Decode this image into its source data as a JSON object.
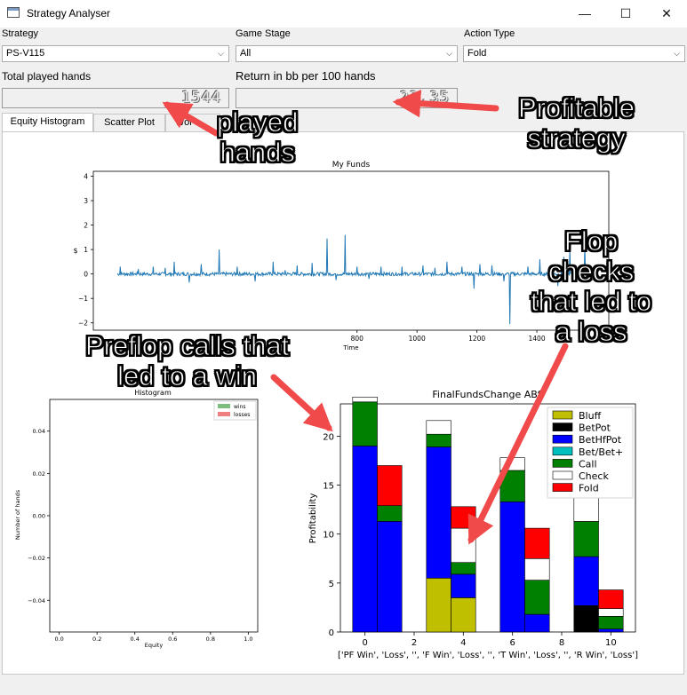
{
  "window": {
    "title": "Strategy Analyser",
    "minimize": "—",
    "maximize": "☐",
    "close": "✕"
  },
  "controls": {
    "strategy_label": "Strategy",
    "strategy_value": "PS-V115",
    "stage_label": "Game Stage",
    "stage_value": "All",
    "action_label": "Action Type",
    "action_value": "Fold",
    "hands_label": "Total played hands",
    "hands_value": "1544",
    "return_label": "Return in bb per 100 hands",
    "return_value": "23.35"
  },
  "tabs": [
    "Equity Histogram",
    "Scatter Plot",
    "Wor"
  ],
  "annotations": {
    "played": "played\nhands",
    "profitable": "Profitable\nstrategy",
    "flop": "Flop\nchecks\nthat led to\na loss",
    "preflop": "Preflop calls that\nled to a win"
  },
  "colors": {
    "line": "#1f77b4",
    "annotation_arrow": "#f04a4a"
  },
  "chart_data": [
    {
      "type": "line",
      "title": "My Funds",
      "xlabel": "Time",
      "ylabel": "$",
      "xlim": [
        -80,
        1640
      ],
      "ylim": [
        -2.3,
        4.2
      ],
      "xticks": [
        "800",
        "1000",
        "1200",
        "1400"
      ],
      "xtick_values": [
        800,
        1000,
        1200,
        1400
      ],
      "yticks": [
        "4",
        "3",
        "2",
        "1",
        "0",
        "−1",
        "−2"
      ],
      "ytick_values": [
        4,
        3,
        2,
        1,
        0,
        -1,
        -2
      ],
      "baseline": 0,
      "spikes": [
        [
          10,
          0.3
        ],
        [
          35,
          1.3
        ],
        [
          70,
          0.2
        ],
        [
          120,
          0.3
        ],
        [
          160,
          0.25
        ],
        [
          190,
          0.5
        ],
        [
          240,
          -0.35
        ],
        [
          280,
          0.4
        ],
        [
          340,
          1.0
        ],
        [
          400,
          0.3
        ],
        [
          460,
          -0.3
        ],
        [
          520,
          0.5
        ],
        [
          560,
          0.15
        ],
        [
          600,
          0.35
        ],
        [
          650,
          0.45
        ],
        [
          700,
          1.45
        ],
        [
          730,
          -0.25
        ],
        [
          760,
          1.6
        ],
        [
          800,
          0.3
        ],
        [
          840,
          -0.2
        ],
        [
          880,
          0.3
        ],
        [
          950,
          0.3
        ],
        [
          1020,
          0.35
        ],
        [
          1060,
          0.25
        ],
        [
          1100,
          0.5
        ],
        [
          1150,
          0.3
        ],
        [
          1185,
          1.7
        ],
        [
          1190,
          -0.6
        ],
        [
          1210,
          0.4
        ],
        [
          1250,
          0.35
        ],
        [
          1290,
          -0.3
        ],
        [
          1310,
          -2.05
        ],
        [
          1345,
          0.5
        ],
        [
          1370,
          0.3
        ],
        [
          1410,
          0.6
        ],
        [
          1470,
          -0.5
        ],
        [
          1490,
          0.7
        ],
        [
          1510,
          1.0
        ],
        [
          1525,
          3.95
        ],
        [
          1540,
          -0.3
        ],
        [
          1560,
          1.2
        ]
      ]
    },
    {
      "type": "bar",
      "title": "Histogram",
      "xlabel": "Equity",
      "ylabel": "Number of hands",
      "xlim": [
        -0.05,
        1.05
      ],
      "ylim": [
        -0.055,
        0.055
      ],
      "xticks": [
        "0.0",
        "0.2",
        "0.4",
        "0.6",
        "0.8",
        "1.0"
      ],
      "xtick_values": [
        0,
        0.2,
        0.4,
        0.6,
        0.8,
        1.0
      ],
      "yticks": [
        "0.04",
        "0.02",
        "0.00",
        "−0.02",
        "−0.04"
      ],
      "ytick_values": [
        0.04,
        0.02,
        0,
        -0.02,
        -0.04
      ],
      "legend": [
        {
          "name": "wins",
          "color": "#7cbf7c"
        },
        {
          "name": "losses",
          "color": "#f08080"
        }
      ],
      "legend_position": "top-right"
    },
    {
      "type": "bar",
      "stacked": true,
      "title": "FinalFundsChange ABS",
      "ylabel": "Profitability",
      "xlabel": "['PF Win', 'Loss', '', 'F Win', 'Loss', '', 'T Win', 'Loss', '', 'R Win', 'Loss']",
      "xlim": [
        -1,
        11
      ],
      "ylim": [
        0,
        23.3
      ],
      "xticks": [
        "0",
        "2",
        "4",
        "6",
        "8",
        "10"
      ],
      "xtick_values": [
        0,
        2,
        4,
        6,
        8,
        10
      ],
      "yticks": [
        "20",
        "15",
        "10",
        "5",
        "0"
      ],
      "ytick_values": [
        20,
        15,
        10,
        5,
        0
      ],
      "legend_position": "top-right",
      "series": [
        {
          "name": "Bluff",
          "color": "#bfbf00",
          "values": [
            0,
            0,
            0,
            5.5,
            3.5,
            0,
            0,
            0,
            0,
            0,
            0
          ]
        },
        {
          "name": "BetPot",
          "color": "#000000",
          "values": [
            0,
            0,
            0,
            0,
            0,
            0,
            0,
            0,
            0,
            2.7,
            0
          ]
        },
        {
          "name": "BetHfPot",
          "color": "#0000ff",
          "values": [
            19,
            11.3,
            0,
            13.4,
            2.4,
            0,
            13.3,
            1.8,
            0,
            5.0,
            0.3
          ]
        },
        {
          "name": "Bet/Bet+",
          "color": "#00bfbf",
          "values": [
            0,
            0,
            0,
            0,
            0,
            0,
            0,
            0,
            0,
            0,
            0
          ]
        },
        {
          "name": "Call",
          "color": "#008000",
          "values": [
            4.5,
            1.6,
            0,
            1.3,
            1.2,
            0,
            3.2,
            3.5,
            0,
            3.6,
            1.3
          ]
        },
        {
          "name": "Check",
          "color": "#ffffff",
          "values": [
            0.5,
            0,
            0,
            1.4,
            3.5,
            0,
            1.3,
            2.2,
            0,
            10.1,
            0.8
          ]
        },
        {
          "name": "Fold",
          "color": "#ff0000",
          "values": [
            0,
            4.1,
            0,
            0,
            2.2,
            0,
            0,
            3.1,
            0,
            0,
            1.9
          ]
        }
      ]
    }
  ]
}
